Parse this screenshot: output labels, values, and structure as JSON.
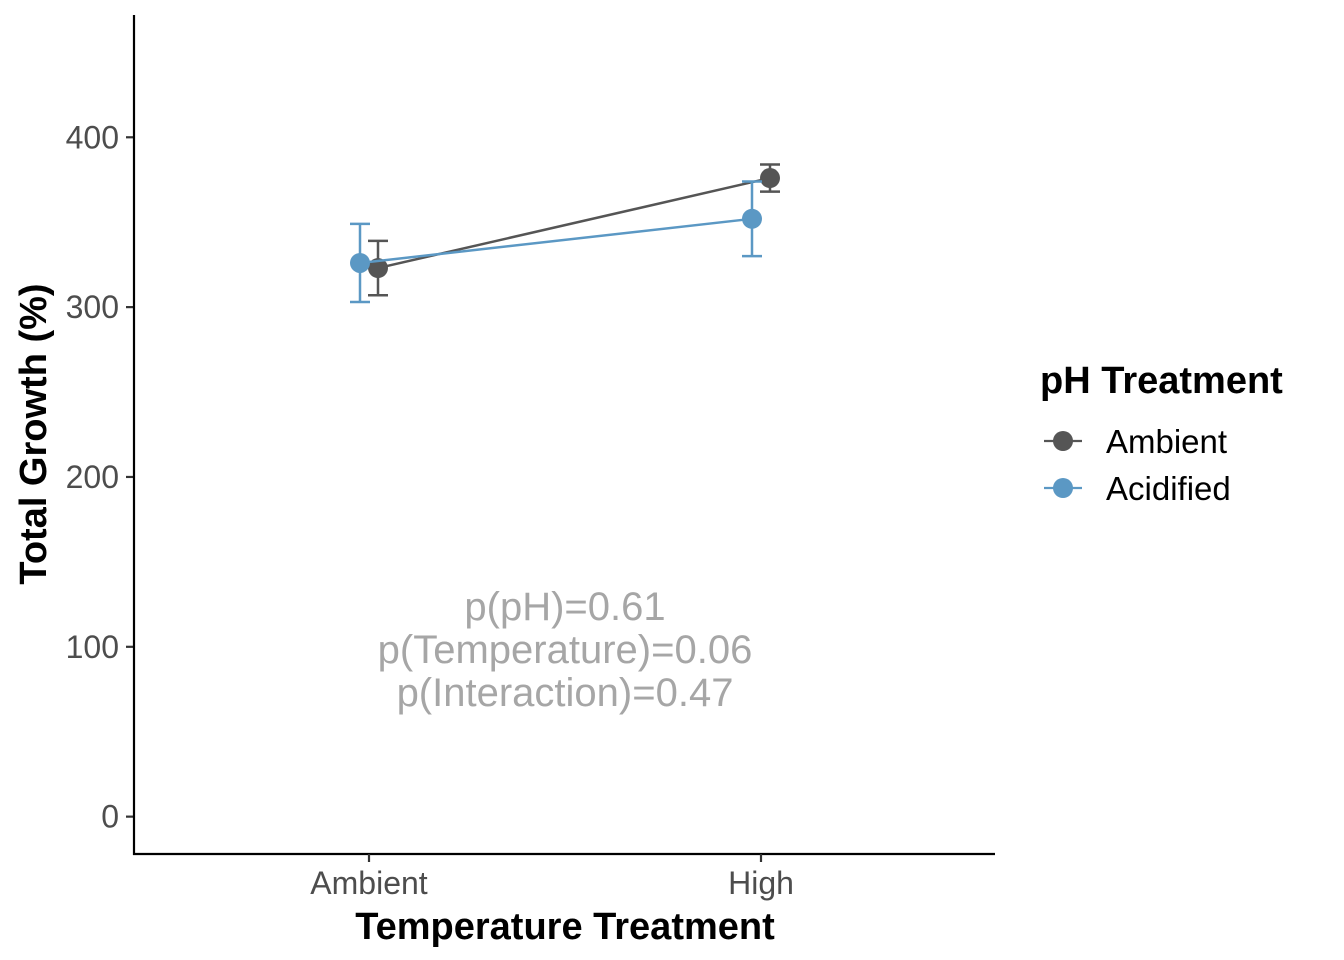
{
  "chart_data": {
    "type": "line",
    "title": "",
    "xlabel": "Temperature Treatment",
    "ylabel": "Total Growth (%)",
    "categories": [
      "Ambient",
      "High"
    ],
    "ylim": [
      -22,
      472
    ],
    "yticks": [
      0,
      100,
      200,
      300,
      400
    ],
    "grid": false,
    "legend": {
      "title": "pH Treatment",
      "placement": "right"
    },
    "series": [
      {
        "name": "Ambient",
        "color": "#555555",
        "values": [
          323,
          376
        ],
        "err_low": [
          307,
          368
        ],
        "err_high": [
          339,
          384
        ]
      },
      {
        "name": "Acidified",
        "color": "#5b98c4",
        "values": [
          326,
          352
        ],
        "err_low": [
          303,
          330
        ],
        "err_high": [
          349,
          374
        ]
      }
    ],
    "annotations": [
      "p(pH)=0.61",
      "p(Temperature)=0.06",
      "p(Interaction)=0.47"
    ],
    "annotation_color": "#a6a6a6"
  }
}
